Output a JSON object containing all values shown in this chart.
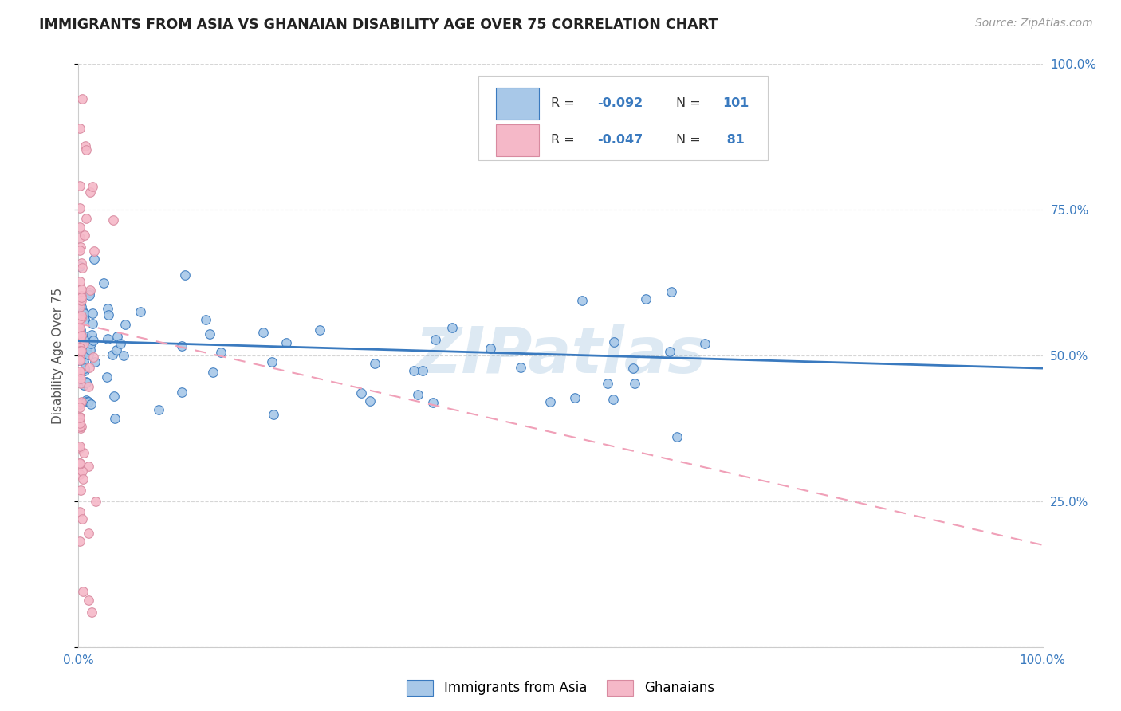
{
  "title": "IMMIGRANTS FROM ASIA VS GHANAIAN DISABILITY AGE OVER 75 CORRELATION CHART",
  "source": "Source: ZipAtlas.com",
  "ylabel": "Disability Age Over 75",
  "xlim": [
    0.0,
    1.0
  ],
  "ylim": [
    0.0,
    1.0
  ],
  "color_asia": "#a8c8e8",
  "color_ghana": "#f5b8c8",
  "color_asia_line": "#3a7abf",
  "color_ghana_line": "#f0a0b8",
  "watermark": "ZIPatlas",
  "asia_line_x0": 0.0,
  "asia_line_y0": 0.525,
  "asia_line_x1": 1.0,
  "asia_line_y1": 0.478,
  "ghana_line_x0": 0.0,
  "ghana_line_y0": 0.555,
  "ghana_line_x1": 1.0,
  "ghana_line_y1": 0.175,
  "legend_r1": "R = ",
  "legend_rv1": "-0.092",
  "legend_n1": "N = ",
  "legend_nv1": "101",
  "legend_r2": "R = ",
  "legend_rv2": "-0.047",
  "legend_n2": "N = ",
  "legend_nv2": " 81"
}
